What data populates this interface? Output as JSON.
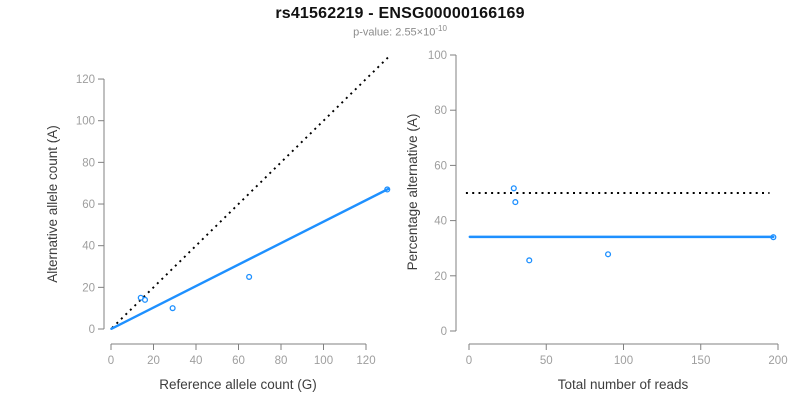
{
  "page": {
    "title": "rs41562219 - ENSG00000166169",
    "subtitle": {
      "prefix": "p-value: 2.55×10",
      "exponent": "-10"
    }
  },
  "colors": {
    "accent_blue": "#1E90FF",
    "dotted_line": "#000000",
    "axis_line": "#808080",
    "tick_label": "#9e9e9e",
    "axis_title": "#3d3d3d",
    "title": "#111111",
    "subtitle": "#8c8c8c",
    "background": "#ffffff"
  },
  "chart_data": [
    {
      "name": "allele-counts-scatter",
      "type": "scatter",
      "xlabel": "Reference allele count (G)",
      "ylabel": "Alternative allele count (A)",
      "xlim": [
        0,
        131
      ],
      "ylim": [
        0,
        131
      ],
      "xticks": [
        0,
        20,
        40,
        60,
        80,
        100,
        120
      ],
      "yticks": [
        0,
        20,
        40,
        60,
        80,
        100,
        120
      ],
      "grid": false,
      "legend": "none",
      "points": [
        [
          14,
          15
        ],
        [
          16,
          14
        ],
        [
          29,
          10
        ],
        [
          65,
          25
        ],
        [
          130,
          67
        ]
      ],
      "lines": [
        {
          "name": "identity-line",
          "style": "dotted",
          "color": "#000000",
          "x1": 0.5,
          "y1": 0.5,
          "x2": 131,
          "y2": 131
        },
        {
          "name": "fit-line",
          "style": "solid",
          "color": "#1E90FF",
          "x1": 0.2,
          "y1": 0.1,
          "x2": 130.6,
          "y2": 67.3
        }
      ]
    },
    {
      "name": "percentage-vs-reads-scatter",
      "type": "scatter",
      "xlabel": "Total number of reads",
      "ylabel": "Percentage alternative (A)",
      "xlim": [
        0,
        201
      ],
      "ylim": [
        0,
        101
      ],
      "xticks": [
        0,
        50,
        100,
        150,
        200
      ],
      "yticks": [
        0,
        20,
        40,
        60,
        80,
        100
      ],
      "grid": false,
      "legend": "none",
      "points": [
        [
          29,
          51.7
        ],
        [
          30,
          46.7
        ],
        [
          39,
          25.6
        ],
        [
          90,
          27.8
        ],
        [
          197,
          34.0
        ]
      ],
      "lines": [
        {
          "name": "fifty-percent-line",
          "style": "dotted",
          "color": "#000000",
          "x1": -2,
          "y1": 50,
          "x2": 194.5,
          "y2": 50
        },
        {
          "name": "mean-percentage-line",
          "style": "solid",
          "color": "#1E90FF",
          "x1": 0.5,
          "y1": 34.1,
          "x2": 197,
          "y2": 34.1
        }
      ]
    }
  ]
}
